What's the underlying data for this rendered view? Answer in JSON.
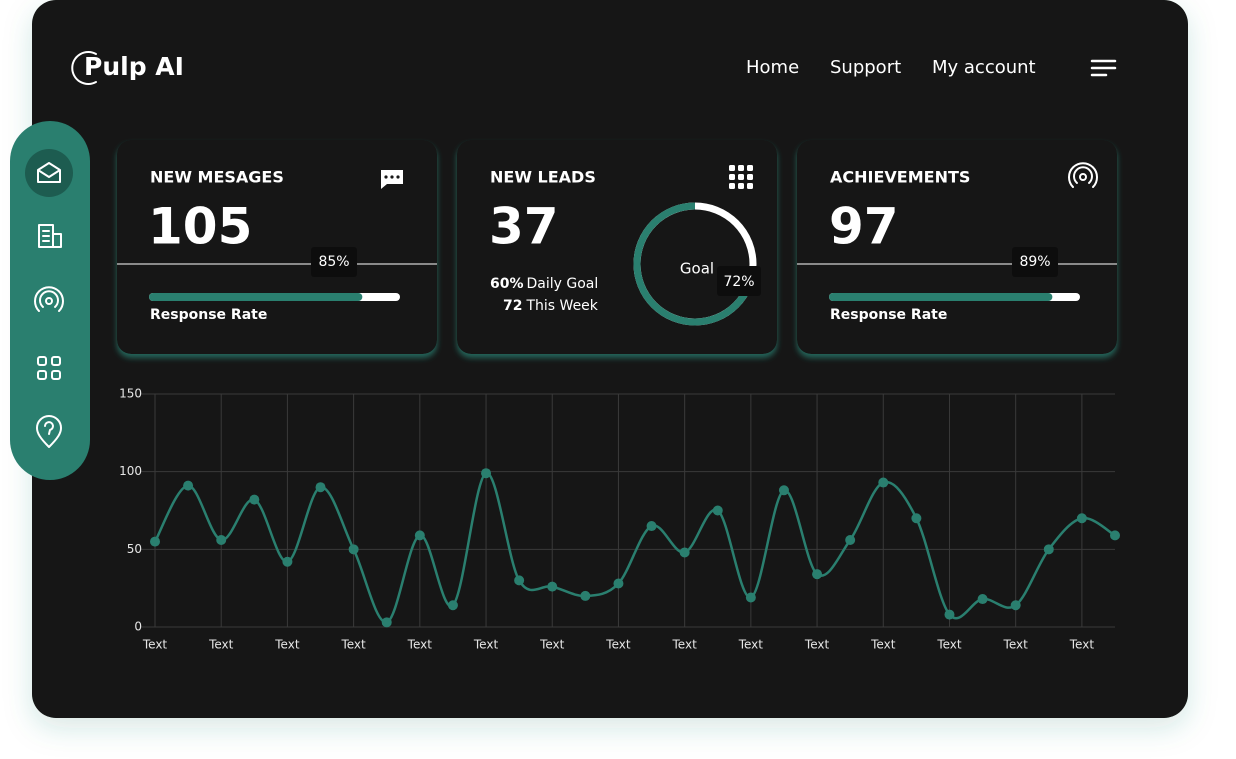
{
  "header": {
    "logo": "Pulp AI",
    "nav": [
      "Home",
      "Support",
      "My account"
    ]
  },
  "cards": [
    {
      "title": "NEW MESAGES",
      "value": 105,
      "progress": {
        "value": 85,
        "label": "85%"
      },
      "caption": "Response Rate"
    },
    {
      "title": "NEW LEADS",
      "value": 37,
      "daily_goal": "60%",
      "daily_goal_label": "Daily Goal",
      "week": 72,
      "week_label": "This Week",
      "goal_label": "Goal",
      "goal": {
        "value": 72,
        "label": "72%"
      }
    },
    {
      "title": "ACHIEVEMENTS",
      "value": 97,
      "progress": {
        "value": 89,
        "label": "89%"
      },
      "caption": "Response Rate"
    }
  ],
  "chart_data": {
    "type": "line",
    "categories": [
      "Text",
      null,
      "Text",
      null,
      "Text",
      null,
      "Text",
      null,
      "Text",
      null,
      "Text",
      null,
      "Text",
      null,
      "Text",
      null,
      "Text",
      null,
      "Text",
      null,
      "Text",
      null,
      "Text",
      null,
      "Text",
      null,
      "Text",
      null,
      "Text",
      null
    ],
    "series": [
      {
        "color": "#2a7f6f",
        "values": [
          55,
          91,
          56,
          82,
          42,
          90,
          50,
          3,
          59,
          14,
          99,
          30,
          26,
          20,
          28,
          65,
          48,
          75,
          19,
          88,
          34,
          56,
          93,
          70,
          8,
          18,
          14,
          50,
          70,
          59
        ]
      }
    ],
    "ylim": [
      0,
      150
    ],
    "yticks": [
      0,
      50,
      100,
      150
    ],
    "grid": true
  }
}
